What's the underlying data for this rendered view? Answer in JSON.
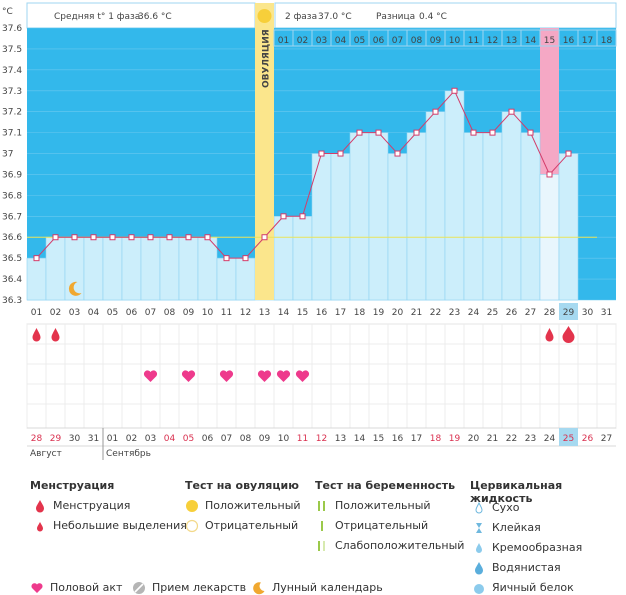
{
  "header": {
    "unit": "°C",
    "phase1_label": "Средняя t° 1 фаза",
    "phase1_value": "36.6 °C",
    "phase2_label": "2 фаза",
    "phase2_value": "37.0 °C",
    "diff_label": "Разница",
    "diff_value": "0.4 °C",
    "ovulation_label": "ОВУЛЯЦИЯ"
  },
  "chart_data": {
    "type": "line",
    "title": "",
    "ylabel": "°C",
    "ylim": [
      36.3,
      37.6
    ],
    "yticks": [
      "36.3",
      "36.4",
      "36.5",
      "36.6",
      "36.7",
      "36.8",
      "36.9",
      "37",
      "37.1",
      "37.2",
      "37.3",
      "37.4",
      "37.5",
      "37.6"
    ],
    "cycle_days": [
      "01",
      "02",
      "03",
      "04",
      "05",
      "06",
      "07",
      "08",
      "09",
      "10",
      "11",
      "12",
      "13",
      "14",
      "15",
      "16",
      "17",
      "18",
      "19",
      "20",
      "21",
      "22",
      "23",
      "24",
      "25",
      "26",
      "27",
      "28",
      "29",
      "30",
      "31"
    ],
    "phase2_days": [
      "01",
      "02",
      "03",
      "04",
      "05",
      "06",
      "07",
      "08",
      "09",
      "10",
      "11",
      "12",
      "13",
      "14",
      "15",
      "16",
      "17",
      "18"
    ],
    "temperatures": [
      36.5,
      36.6,
      36.6,
      36.6,
      36.6,
      36.6,
      36.6,
      36.6,
      36.6,
      36.6,
      36.5,
      36.5,
      36.6,
      36.7,
      36.7,
      37.0,
      37.0,
      37.1,
      37.1,
      37.0,
      37.1,
      37.2,
      37.3,
      37.1,
      37.1,
      37.2,
      37.1,
      36.9,
      37.0
    ],
    "coverline": 36.6,
    "ovulation_day": 13,
    "highlight_day": 28,
    "today_day": 29,
    "moon_day": 3,
    "menstruation_days": [
      1,
      2,
      28
    ],
    "menstruation_large_day": 29,
    "intercourse_days": [
      7,
      9,
      11,
      13,
      14,
      15
    ],
    "calendar_dates": [
      "28",
      "29",
      "30",
      "31",
      "01",
      "02",
      "03",
      "04",
      "05",
      "06",
      "07",
      "08",
      "09",
      "10",
      "11",
      "12",
      "13",
      "14",
      "15",
      "16",
      "17",
      "18",
      "19",
      "20",
      "21",
      "22",
      "23",
      "24",
      "25",
      "26",
      "27"
    ],
    "weekend_indexes": [
      0,
      1,
      7,
      8,
      14,
      15,
      21,
      22,
      28,
      29
    ],
    "month1": "Август",
    "month2": "Сентябрь"
  },
  "legend": {
    "col1_title": "Менструация",
    "col1_items": [
      "Менструация",
      "Небольшие выделения"
    ],
    "col2_title": "Тест на овуляцию",
    "col2_items": [
      "Положительный",
      "Отрицательный"
    ],
    "col3_title": "Тест на беременность",
    "col3_items": [
      "Положительный",
      "Отрицательный",
      "Слабоположительный"
    ],
    "col4_title": "Цервикальная жидкость",
    "col4_items": [
      "Сухо",
      "Клейкая",
      "Кремообразная",
      "Водянистая",
      "Яичный белок"
    ],
    "bottom_items": [
      "Половой акт",
      "Прием лекарств",
      "Лунный календарь"
    ]
  },
  "colors": {
    "sky": "#33b8eb",
    "bar": "#cceefb",
    "line": "#d33c6a",
    "ovulation": "#fbe68c",
    "highlight": "#f5a8c5",
    "menstruation": "#e3344c",
    "heart": "#ee3a8c",
    "today": "#a6d9f0"
  }
}
